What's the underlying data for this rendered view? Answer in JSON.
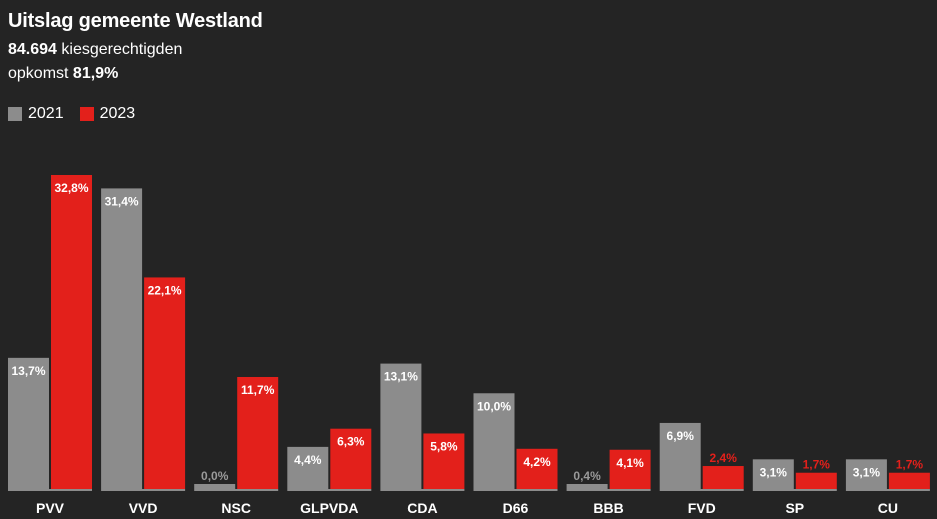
{
  "header": {
    "title": "Uitslag gemeente Westland",
    "voters_value": "84.694",
    "voters_label": "kiesgerechtigden",
    "turnout_label": "opkomst",
    "turnout_value": "81,9%"
  },
  "colors": {
    "background": "#242424",
    "series_2021": "#8c8c8c",
    "series_2023": "#e3201b",
    "label_on_bar": "#ffffff",
    "label_outside_2021": "#9a9a9a",
    "label_outside_2023": "#e3201b",
    "baseline": "#8c8c8c"
  },
  "chart_data": {
    "type": "bar",
    "categories": [
      "PVV",
      "VVD",
      "NSC",
      "GLPVDA",
      "CDA",
      "D66",
      "BBB",
      "FVD",
      "SP",
      "CU"
    ],
    "series": [
      {
        "name": "2021",
        "values": [
          13.7,
          31.4,
          0.0,
          4.4,
          13.1,
          10.0,
          0.4,
          6.9,
          3.1,
          3.1
        ],
        "labels": [
          "13,7%",
          "31,4%",
          "0,0%",
          "4,4%",
          "13,1%",
          "10,0%",
          "0,4%",
          "6,9%",
          "3,1%",
          "3,1%"
        ]
      },
      {
        "name": "2023",
        "values": [
          32.8,
          22.1,
          11.7,
          6.3,
          5.8,
          4.2,
          4.1,
          2.4,
          1.7,
          1.7
        ],
        "labels": [
          "32,8%",
          "22,1%",
          "11,7%",
          "6,3%",
          "5,8%",
          "4,2%",
          "4,1%",
          "2,4%",
          "1,7%",
          "1,7%"
        ]
      }
    ],
    "ylim": [
      0,
      32.8
    ],
    "grid": false,
    "legend_position": "top-left"
  }
}
